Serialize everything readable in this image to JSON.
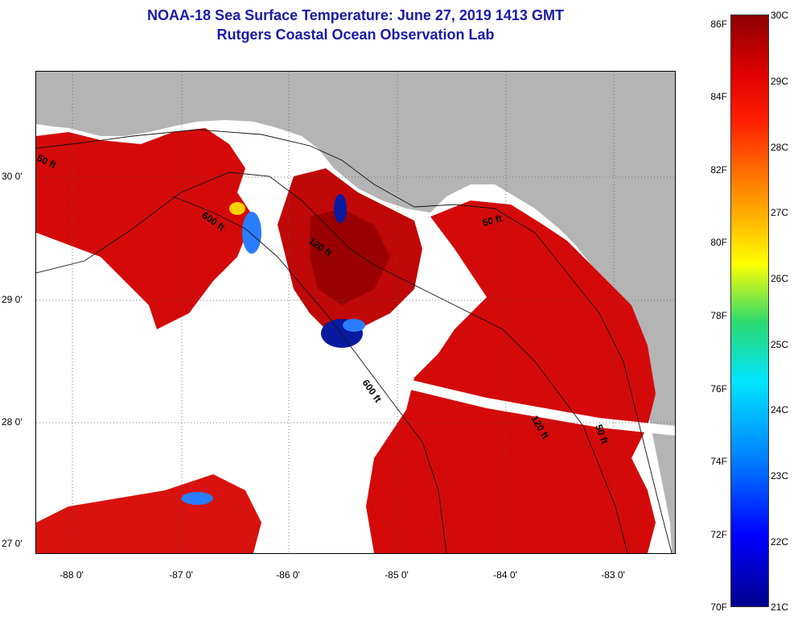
{
  "title": {
    "line1": "NOAA-18 Sea Surface Temperature:  June 27, 2019 1413 GMT",
    "line2": "Rutgers Coastal Ocean Observation Lab"
  },
  "map": {
    "lat_labels": [
      "30 0'",
      "29 0'",
      "28 0'",
      "27 0'"
    ],
    "lon_labels": [
      "-88 0'",
      "-87 0'",
      "-86 0'",
      "-85 0'",
      "-84 0'",
      "-83 0'"
    ],
    "contour_labels": [
      "50 ft",
      "600 ft",
      "120 ft",
      "50 ft",
      "600 ft",
      "120 ft",
      "50 ft"
    ],
    "colors": {
      "land": "#b4b4b4",
      "no_data": "#ffffff",
      "warm": "#d40a0a",
      "hot": "#9a0000",
      "cool": "#2a7cff",
      "cold": "#0a1aa0",
      "mid": "#ffd000"
    }
  },
  "colorbar": {
    "fahrenheit_labels": [
      "86F",
      "84F",
      "82F",
      "80F",
      "78F",
      "76F",
      "74F",
      "72F",
      "70F"
    ],
    "celsius_labels": [
      "30C",
      "29C",
      "28C",
      "27C",
      "26C",
      "25C",
      "24C",
      "23C",
      "22C",
      "21C"
    ],
    "range_f": [
      70,
      86
    ],
    "range_c": [
      21,
      30
    ]
  }
}
